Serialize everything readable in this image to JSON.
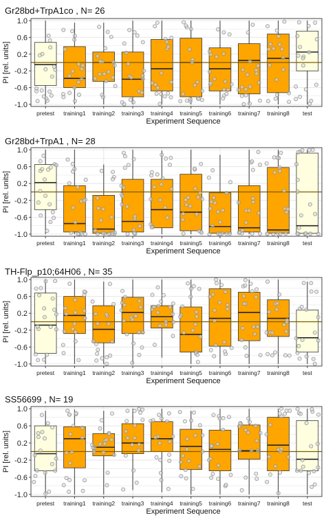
{
  "colors": {
    "training_fill": "#FFA500",
    "control_fill": "#FFFFE0",
    "box_stroke": "#333333",
    "median": "#222222",
    "zero_line": "#7A5C00",
    "point_fill": "#D9D9D9",
    "point_stroke": "#8C8C8C",
    "panel_border": "#444444",
    "grid": "#E6E6E6"
  },
  "chart_data": [
    {
      "type": "box",
      "title": "Gr28bd+TrpA1co , N= 26",
      "xlabel": "Experiment Sequence",
      "ylabel": "PI [rel. units]",
      "ylim": [
        -1.05,
        1.05
      ],
      "y_ticks": [
        "1.0",
        "0.6",
        "0.2",
        "-0.2",
        "-0.6",
        "-1.0"
      ],
      "categories": [
        "pretest",
        "training1",
        "training2",
        "training3",
        "training4",
        "training5",
        "training6",
        "training7",
        "training8",
        "test"
      ],
      "reference_line": 0,
      "boxes": [
        {
          "q1": -0.55,
          "median": -0.05,
          "q3": 0.48,
          "min": -1.0,
          "max": 1.0
        },
        {
          "q1": -0.6,
          "median": -0.38,
          "q3": 0.38,
          "min": -1.0,
          "max": 0.95
        },
        {
          "q1": -0.45,
          "median": 0.0,
          "q3": 0.25,
          "min": -1.0,
          "max": 0.95
        },
        {
          "q1": -0.82,
          "median": -0.4,
          "q3": 0.25,
          "min": -1.0,
          "max": 1.0
        },
        {
          "q1": -0.68,
          "median": -0.15,
          "q3": 0.55,
          "min": -1.0,
          "max": 1.0
        },
        {
          "q1": -0.82,
          "median": 0.0,
          "q3": 0.58,
          "min": -1.0,
          "max": 1.0
        },
        {
          "q1": -0.68,
          "median": -0.15,
          "q3": 0.35,
          "min": -1.0,
          "max": 1.0
        },
        {
          "q1": -0.75,
          "median": 0.05,
          "q3": 0.45,
          "min": -1.0,
          "max": 1.0
        },
        {
          "q1": -0.72,
          "median": 0.1,
          "q3": 0.68,
          "min": -1.0,
          "max": 1.0
        },
        {
          "q1": -0.2,
          "median": 0.25,
          "q3": 0.75,
          "min": -1.0,
          "max": 1.0
        }
      ]
    },
    {
      "type": "box",
      "title": "Gr28bd+TrpA1 , N= 28",
      "xlabel": "Experiment Sequence",
      "ylabel": "PI [rel. units]",
      "ylim": [
        -1.05,
        1.05
      ],
      "y_ticks": [
        "1.0",
        "0.6",
        "0.2",
        "-0.2",
        "-0.6",
        "-1.0"
      ],
      "categories": [
        "pretest",
        "training1",
        "training2",
        "training3",
        "training4",
        "training5",
        "training6",
        "training7",
        "training8",
        "test"
      ],
      "reference_line": 0,
      "boxes": [
        {
          "q1": -0.42,
          "median": 0.22,
          "q3": 0.65,
          "min": -1.0,
          "max": 1.0
        },
        {
          "q1": -0.95,
          "median": -0.75,
          "q3": 0.15,
          "min": -1.0,
          "max": 1.0
        },
        {
          "q1": -0.98,
          "median": -0.88,
          "q3": -0.08,
          "min": -1.0,
          "max": 0.65
        },
        {
          "q1": -0.95,
          "median": -0.7,
          "q3": 0.3,
          "min": -1.0,
          "max": 1.0
        },
        {
          "q1": -0.85,
          "median": -0.42,
          "q3": 0.3,
          "min": -1.0,
          "max": 0.98
        },
        {
          "q1": -0.92,
          "median": -0.48,
          "q3": 0.42,
          "min": -1.0,
          "max": 1.0
        },
        {
          "q1": -0.98,
          "median": -0.82,
          "q3": -0.02,
          "min": -1.0,
          "max": 0.88
        },
        {
          "q1": -0.95,
          "median": -0.85,
          "q3": 0.15,
          "min": -1.0,
          "max": 1.0
        },
        {
          "q1": -0.98,
          "median": -0.9,
          "q3": 0.58,
          "min": -1.0,
          "max": 1.0
        },
        {
          "q1": -0.98,
          "median": -0.8,
          "q3": 0.92,
          "min": -1.0,
          "max": 1.0
        }
      ]
    },
    {
      "type": "box",
      "title": "TH-Flp_p10;64H06 , N= 35",
      "xlabel": "Experiment Sequence",
      "ylabel": "PI [rel. units]",
      "ylim": [
        -1.05,
        1.05
      ],
      "y_ticks": [
        "1.0",
        "0.6",
        "0.2",
        "-0.2",
        "-0.6",
        "-1.0"
      ],
      "categories": [
        "pretest",
        "training1",
        "training2",
        "training3",
        "training4",
        "training5",
        "training6",
        "training7",
        "training8",
        "test"
      ],
      "reference_line": 0,
      "boxes": [
        {
          "q1": -0.75,
          "median": -0.08,
          "q3": 0.68,
          "min": -1.0,
          "max": 1.0
        },
        {
          "q1": -0.28,
          "median": 0.15,
          "q3": 0.6,
          "min": -1.0,
          "max": 1.0
        },
        {
          "q1": -0.5,
          "median": -0.18,
          "q3": 0.38,
          "min": -1.0,
          "max": 0.95
        },
        {
          "q1": -0.28,
          "median": 0.22,
          "q3": 0.58,
          "min": -1.0,
          "max": 1.0
        },
        {
          "q1": -0.15,
          "median": 0.12,
          "q3": 0.38,
          "min": -0.85,
          "max": 1.0
        },
        {
          "q1": -0.72,
          "median": -0.3,
          "q3": 0.35,
          "min": -1.0,
          "max": 1.0
        },
        {
          "q1": -0.58,
          "median": 0.08,
          "q3": 0.78,
          "min": -1.0,
          "max": 1.0
        },
        {
          "q1": -0.45,
          "median": 0.22,
          "q3": 0.7,
          "min": -1.0,
          "max": 1.0
        },
        {
          "q1": -0.35,
          "median": 0.08,
          "q3": 0.52,
          "min": -1.0,
          "max": 1.0
        },
        {
          "q1": -0.72,
          "median": -0.38,
          "q3": 0.28,
          "min": -1.0,
          "max": 0.95
        }
      ]
    },
    {
      "type": "box",
      "title": "SS56699 , N= 19",
      "xlabel": "Experiment Sequence",
      "ylabel": "PI [rel. units]",
      "ylim": [
        -1.05,
        1.05
      ],
      "y_ticks": [
        "1.0",
        "0.6",
        "0.2",
        "-0.2",
        "-0.6",
        "-1.0"
      ],
      "categories": [
        "pretest",
        "training1",
        "training2",
        "training3",
        "training4",
        "training5",
        "training6",
        "training7",
        "training8",
        "test"
      ],
      "reference_line": 0,
      "boxes": [
        {
          "q1": -0.45,
          "median": -0.05,
          "q3": 0.6,
          "min": -1.0,
          "max": 0.95
        },
        {
          "q1": -0.38,
          "median": 0.3,
          "q3": 0.58,
          "min": -1.0,
          "max": 0.98
        },
        {
          "q1": -0.1,
          "median": 0.1,
          "q3": 0.42,
          "min": -1.0,
          "max": 0.95
        },
        {
          "q1": -0.05,
          "median": 0.2,
          "q3": 0.65,
          "min": -0.9,
          "max": 1.0
        },
        {
          "q1": 0.0,
          "median": 0.3,
          "q3": 0.7,
          "min": -0.95,
          "max": 1.0
        },
        {
          "q1": -0.42,
          "median": 0.12,
          "q3": 0.52,
          "min": -1.0,
          "max": 0.95
        },
        {
          "q1": -0.45,
          "median": 0.05,
          "q3": 0.5,
          "min": -1.0,
          "max": 1.0
        },
        {
          "q1": -0.18,
          "median": 0.02,
          "q3": 0.62,
          "min": -1.0,
          "max": 1.0
        },
        {
          "q1": -0.45,
          "median": 0.15,
          "q3": 0.8,
          "min": -1.0,
          "max": 1.0
        },
        {
          "q1": -0.45,
          "median": -0.18,
          "q3": 0.72,
          "min": -1.0,
          "max": 1.0
        }
      ]
    }
  ]
}
